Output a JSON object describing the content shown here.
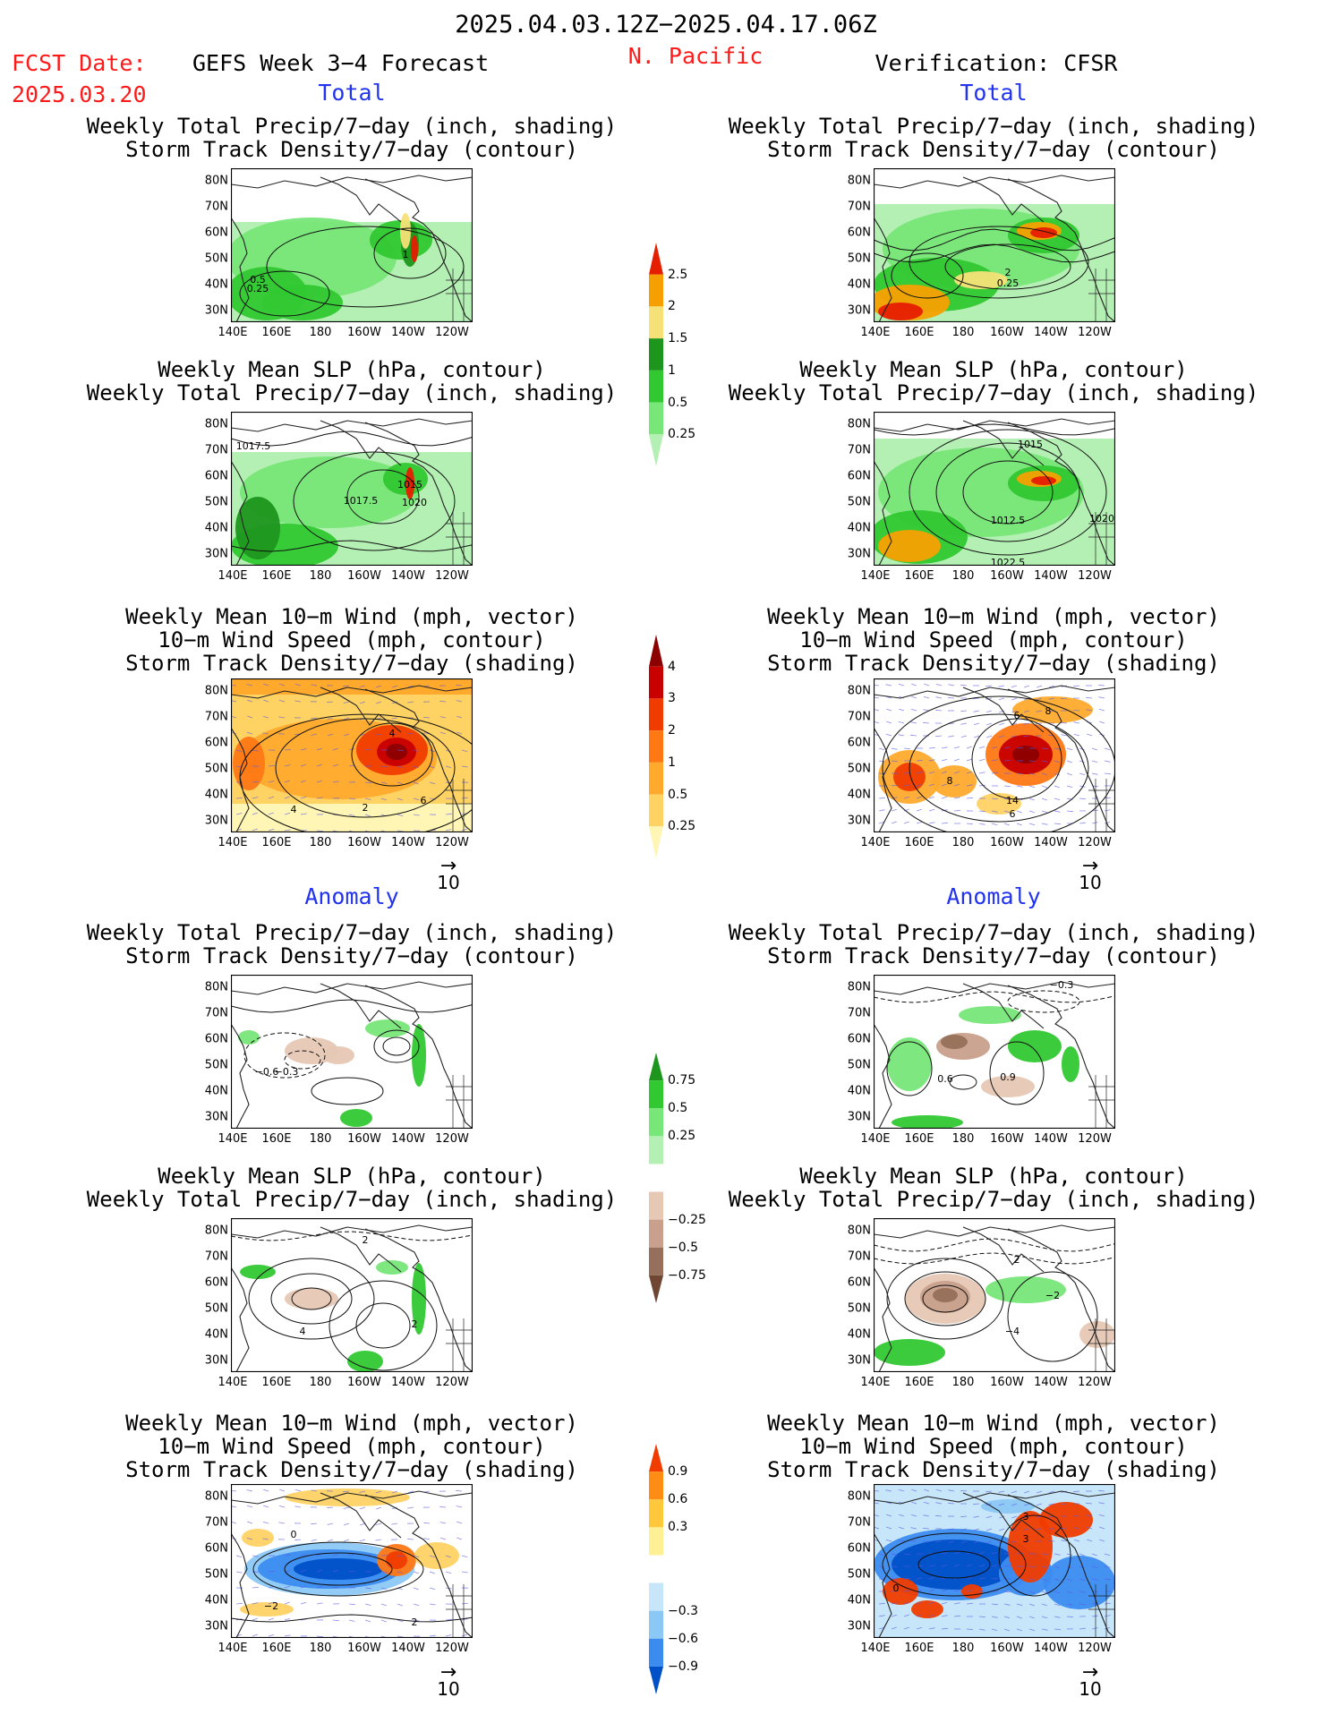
{
  "header": {
    "date_range": "2025.04.03.12Z−2025.04.17.06Z",
    "fcst_date_label": "FCST Date:",
    "fcst_date": "2025.03.20",
    "forecast_title": "GEFS Week 3−4 Forecast",
    "region": "N. Pacific",
    "verification_title": "Verification: CFSR",
    "section_total": "Total",
    "section_anomaly": "Anomaly"
  },
  "titles": {
    "precip_storm": [
      "Weekly Total Precip/7−day (inch, shading)",
      "Storm Track Density/7−day (contour)"
    ],
    "slp_precip": [
      "Weekly Mean SLP (hPa, contour)",
      "Weekly Total Precip/7−day (inch, shading)"
    ],
    "wind_storm": [
      "Weekly Mean 10−m Wind (mph, vector)",
      "10−m Wind Speed (mph, contour)",
      "Storm Track Density/7−day (shading)"
    ]
  },
  "axes": {
    "lat_labels": [
      "80N",
      "70N",
      "60N",
      "50N",
      "40N",
      "30N"
    ],
    "lon_labels": [
      "140E",
      "160E",
      "180",
      "160W",
      "140W",
      "120W"
    ]
  },
  "vector_ref": "10",
  "colorbars": {
    "precip_total": {
      "colors": [
        "#b4f0b4",
        "#78e678",
        "#32c832",
        "#1e961e",
        "#f5e178",
        "#f5a000",
        "#e61e00"
      ],
      "labels": [
        "0.25",
        "0.5",
        "1",
        "1.5",
        "2",
        "2.5"
      ]
    },
    "storm_total": {
      "colors": [
        "#fff5b4",
        "#ffd264",
        "#ffaa2d",
        "#ff7814",
        "#f03c00",
        "#c80000",
        "#8c0000"
      ],
      "labels": [
        "0.25",
        "0.5",
        "1",
        "2",
        "3",
        "4"
      ]
    },
    "precip_anom": {
      "colors": [
        "#6e4632",
        "#96705a",
        "#c8a08c",
        "#e6c8b4",
        "#ffffff",
        "#b4f0b4",
        "#78e678",
        "#32c832",
        "#1e961e"
      ],
      "labels": [
        "−0.75",
        "−0.5",
        "−0.25",
        "0.25",
        "0.5",
        "0.75"
      ]
    },
    "storm_anom": {
      "colors": [
        "#0050c8",
        "#3c8cf0",
        "#8cc8f5",
        "#c8e6fa",
        "#ffffff",
        "#fff096",
        "#ffc83c",
        "#ff8c14",
        "#f03c00"
      ],
      "labels": [
        "−0.9",
        "−0.6",
        "−0.3",
        "0.3",
        "0.6",
        "0.9"
      ]
    }
  },
  "panels": [
    {
      "id": "fcst-total-precip",
      "contour_labels": [
        "1",
        "0.5",
        "0.25"
      ]
    },
    {
      "id": "fcst-total-slp",
      "contour_labels": [
        "1017.5",
        "1015",
        "1017.5",
        "1020"
      ]
    },
    {
      "id": "fcst-total-wind",
      "contour_labels": [
        "4",
        "2",
        "6",
        "4"
      ]
    },
    {
      "id": "fcst-anom-precip",
      "contour_labels": [
        "−0.6",
        "−0.3"
      ]
    },
    {
      "id": "fcst-anom-slp",
      "contour_labels": [
        "2",
        "4",
        "2"
      ]
    },
    {
      "id": "fcst-anom-wind",
      "contour_labels": [
        "0",
        "−2",
        "2"
      ]
    },
    {
      "id": "ver-total-precip",
      "contour_labels": [
        "2",
        "0.25"
      ]
    },
    {
      "id": "ver-total-slp",
      "contour_labels": [
        "1015",
        "1012.5",
        "1020",
        "1022.5"
      ]
    },
    {
      "id": "ver-total-wind",
      "contour_labels": [
        "8",
        "14",
        "6",
        "8",
        "6"
      ]
    },
    {
      "id": "ver-anom-precip",
      "contour_labels": [
        "−0.3",
        "0.6",
        "0.9"
      ]
    },
    {
      "id": "ver-anom-slp",
      "contour_labels": [
        "2",
        "−2",
        "−4"
      ]
    },
    {
      "id": "ver-anom-wind",
      "contour_labels": [
        "3",
        "3",
        "0"
      ]
    }
  ]
}
